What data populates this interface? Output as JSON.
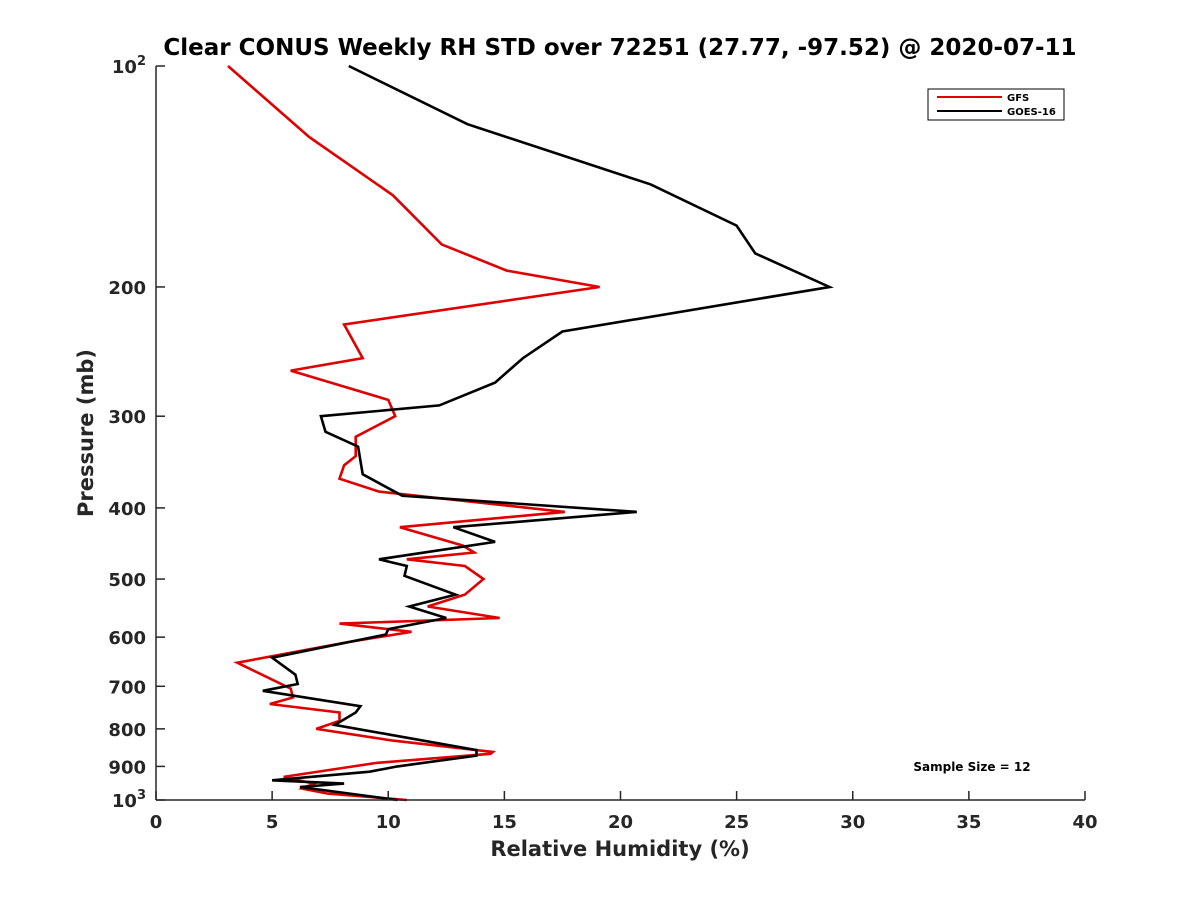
{
  "chart_data": {
    "type": "line",
    "title": "Clear CONUS Weekly RH STD over 72251 (27.77, -97.52) @ 2020-07-11",
    "xlabel": "Relative Humidity (%)",
    "ylabel": "Pressure (mb)",
    "xlim": [
      0,
      40
    ],
    "ylim": [
      1000,
      100
    ],
    "yscale": "log",
    "y_reversed": true,
    "x_ticks": [
      0,
      5,
      10,
      15,
      20,
      25,
      30,
      35,
      40
    ],
    "x_tick_labels": [
      "0",
      "5",
      "10",
      "15",
      "20",
      "25",
      "30",
      "35",
      "40"
    ],
    "y_ticks": [
      100,
      200,
      300,
      400,
      500,
      600,
      700,
      800,
      900,
      1000
    ],
    "y_tick_labels": [
      {
        "base": "10",
        "exp": "2"
      },
      {
        "base": "200",
        "exp": ""
      },
      {
        "base": "300",
        "exp": ""
      },
      {
        "base": "400",
        "exp": ""
      },
      {
        "base": "500",
        "exp": ""
      },
      {
        "base": "600",
        "exp": ""
      },
      {
        "base": "700",
        "exp": ""
      },
      {
        "base": "800",
        "exp": ""
      },
      {
        "base": "900",
        "exp": ""
      },
      {
        "base": "10",
        "exp": "3"
      }
    ],
    "grid": false,
    "legend_position": "top-right",
    "annotation": "Sample Size = 12",
    "series": [
      {
        "name": "GFS",
        "color": "#e00000",
        "points": [
          [
            3.1,
            100
          ],
          [
            6.6,
            125
          ],
          [
            10.2,
            150
          ],
          [
            12.3,
            175
          ],
          [
            15.1,
            190
          ],
          [
            19.1,
            200
          ],
          [
            8.1,
            225
          ],
          [
            8.9,
            250
          ],
          [
            5.8,
            260
          ],
          [
            10.0,
            285
          ],
          [
            10.3,
            300
          ],
          [
            8.6,
            320
          ],
          [
            8.6,
            340
          ],
          [
            8.1,
            350
          ],
          [
            7.9,
            365
          ],
          [
            9.6,
            380
          ],
          [
            17.6,
            405
          ],
          [
            10.5,
            425
          ],
          [
            13.2,
            450
          ],
          [
            13.7,
            460
          ],
          [
            10.8,
            470
          ],
          [
            13.3,
            480
          ],
          [
            14.1,
            500
          ],
          [
            13.3,
            525
          ],
          [
            11.7,
            545
          ],
          [
            14.8,
            565
          ],
          [
            7.9,
            575
          ],
          [
            11.0,
            590
          ],
          [
            8.2,
            610
          ],
          [
            3.5,
            650
          ],
          [
            5.8,
            705
          ],
          [
            5.9,
            725
          ],
          [
            4.9,
            740
          ],
          [
            7.9,
            760
          ],
          [
            7.9,
            780
          ],
          [
            6.9,
            800
          ],
          [
            10.2,
            830
          ],
          [
            14.5,
            860
          ],
          [
            14.4,
            865
          ],
          [
            9.5,
            890
          ],
          [
            5.5,
            930
          ],
          [
            6.8,
            950
          ],
          [
            6.3,
            965
          ],
          [
            7.4,
            980
          ],
          [
            10.8,
            1000
          ]
        ]
      },
      {
        "name": "GOES-16",
        "color": "#000000",
        "points": [
          [
            8.3,
            100
          ],
          [
            13.4,
            120
          ],
          [
            21.3,
            145
          ],
          [
            25.0,
            165
          ],
          [
            25.8,
            180
          ],
          [
            29.0,
            200
          ],
          [
            17.5,
            230
          ],
          [
            15.8,
            250
          ],
          [
            14.6,
            270
          ],
          [
            12.2,
            290
          ],
          [
            7.1,
            300
          ],
          [
            7.3,
            315
          ],
          [
            8.7,
            330
          ],
          [
            8.9,
            360
          ],
          [
            10.6,
            385
          ],
          [
            20.7,
            405
          ],
          [
            12.8,
            425
          ],
          [
            14.6,
            445
          ],
          [
            9.6,
            470
          ],
          [
            10.8,
            480
          ],
          [
            10.7,
            495
          ],
          [
            12.9,
            525
          ],
          [
            10.9,
            545
          ],
          [
            12.5,
            565
          ],
          [
            10.0,
            585
          ],
          [
            9.9,
            595
          ],
          [
            5.0,
            640
          ],
          [
            6.0,
            675
          ],
          [
            6.1,
            695
          ],
          [
            4.6,
            710
          ],
          [
            8.8,
            745
          ],
          [
            8.6,
            760
          ],
          [
            7.7,
            790
          ],
          [
            10.1,
            815
          ],
          [
            13.8,
            855
          ],
          [
            13.8,
            870
          ],
          [
            10.4,
            900
          ],
          [
            9.2,
            915
          ],
          [
            5.0,
            940
          ],
          [
            8.1,
            950
          ],
          [
            6.2,
            960
          ],
          [
            10.4,
            1000
          ]
        ]
      }
    ]
  }
}
